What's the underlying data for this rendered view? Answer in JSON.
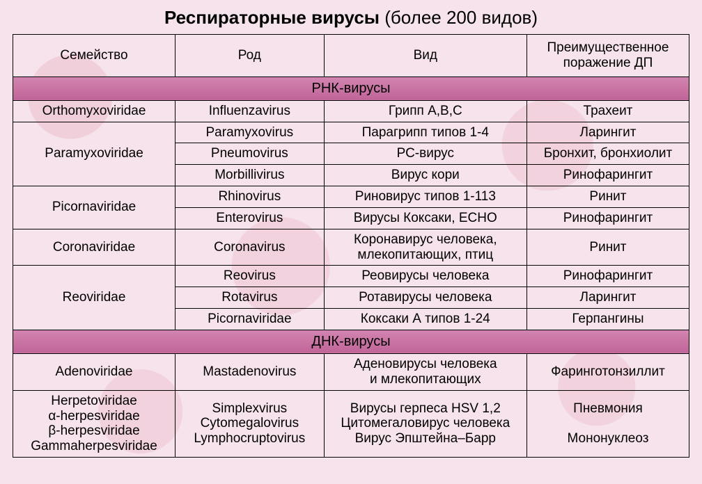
{
  "title_bold": "Респираторные вирусы",
  "title_rest": " (более 200 видов)",
  "headers": {
    "family": "Семейство",
    "genus": "Род",
    "species": "Вид",
    "lesion": "Преимущественное\nпоражение ДП"
  },
  "section1": "РНК-вирусы",
  "section2": "ДНК-вирусы",
  "rna": {
    "r1": {
      "family": "Orthomyxoviridae",
      "genus": "Influenzavirus",
      "species": "Грипп А,В,С",
      "lesion": "Трахеит"
    },
    "r2": {
      "family": "Paramyxoviridae",
      "genus": "Paramyxovirus",
      "species": "Парагрипп типов 1-4",
      "lesion": "Ларингит"
    },
    "r3": {
      "genus": "Pneumovirus",
      "species": "РС-вирус",
      "lesion": "Бронхит, бронхиолит"
    },
    "r4": {
      "genus": "Morbillivirus",
      "species": "Вирус кори",
      "lesion": "Ринофарингит"
    },
    "r5": {
      "family": "Picornaviridae",
      "genus": "Rhinovirus",
      "species": "Риновирус типов 1-113",
      "lesion": "Ринит"
    },
    "r6": {
      "genus": "Enterovirus",
      "species": "Вирусы Коксаки, ЕСНО",
      "lesion": "Ринофарингит"
    },
    "r7": {
      "family": "Coronaviridae",
      "genus": "Coronavirus",
      "species": "Коронавирус человека,\nмлекопитающих, птиц",
      "lesion": "Ринит"
    },
    "r8": {
      "family": "Reoviridae",
      "genus": "Reovirus",
      "species": "Реовирусы человека",
      "lesion": "Ринофарингит"
    },
    "r9": {
      "genus": "Rotavirus",
      "species": "Ротавирусы человека",
      "lesion": "Ларингит"
    },
    "r10": {
      "genus": "Picornaviridae",
      "species": "Коксаки А типов 1-24",
      "lesion": "Герпангины"
    }
  },
  "dna": {
    "d1": {
      "family": "Adenoviridae",
      "genus": "Mastadenovirus",
      "species": "Аденовирусы человека\nи млекопитающих",
      "lesion": "Фаринготонзиллит"
    },
    "d2": {
      "family": "Herpetoviridae\nα-herpesviridae\nβ-herpesviridae\nGammaherpesviridae",
      "genus": "Simplexvirus\nCytomegalovirus\nLymphocruptovirus",
      "species": "Вирусы герпеса HSV 1,2\nЦитомегаловирус человека\nВирус Эпштейна–Барр",
      "lesion": "Пневмония\n\nМононуклеоз"
    }
  },
  "colors": {
    "section_bg": "#c76a9f",
    "page_bg": "#f6e3eb",
    "border": "#000000"
  }
}
